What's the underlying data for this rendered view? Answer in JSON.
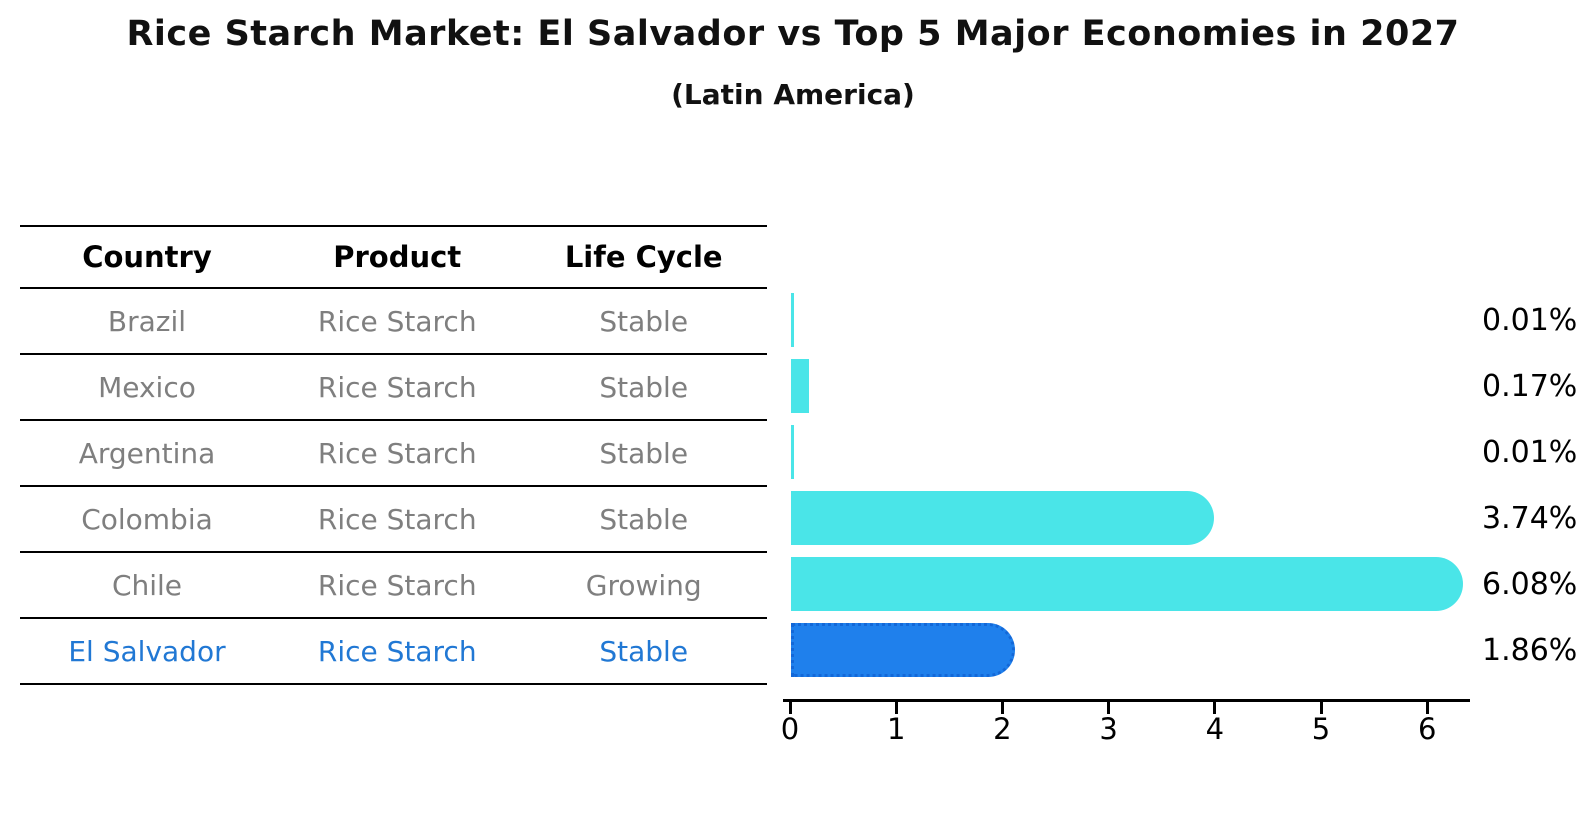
{
  "title": "Rice Starch Market: El Salvador vs Top 5 Major Economies in 2027",
  "subtitle": "(Latin America)",
  "table": {
    "headers": [
      "Country",
      "Product",
      "Life Cycle"
    ],
    "rows": [
      {
        "country": "Brazil",
        "product": "Rice Starch",
        "life_cycle": "Stable",
        "highlight": false
      },
      {
        "country": "Mexico",
        "product": "Rice Starch",
        "life_cycle": "Stable",
        "highlight": false
      },
      {
        "country": "Argentina",
        "product": "Rice Starch",
        "life_cycle": "Stable",
        "highlight": false
      },
      {
        "country": "Colombia",
        "product": "Rice Starch",
        "life_cycle": "Stable",
        "highlight": false
      },
      {
        "country": "Chile",
        "product": "Rice Starch",
        "life_cycle": "Growing",
        "highlight": false
      },
      {
        "country": "El Salvador",
        "product": "Rice Starch",
        "life_cycle": "Stable",
        "highlight": true
      }
    ]
  },
  "chart_data": {
    "type": "bar",
    "orientation": "horizontal",
    "title": "Rice Starch Market: El Salvador vs Top 5 Major Economies in 2027",
    "subtitle": "(Latin America)",
    "categories": [
      "Brazil",
      "Mexico",
      "Argentina",
      "Colombia",
      "Chile",
      "El Salvador"
    ],
    "values": [
      0.01,
      0.17,
      0.01,
      3.74,
      6.08,
      1.86
    ],
    "value_labels": [
      "0.01%",
      "0.17%",
      "0.01%",
      "3.74%",
      "6.08%",
      "1.86%"
    ],
    "x_ticks": [
      "0",
      "1",
      "2",
      "3",
      "4",
      "5",
      "6"
    ],
    "xlim": [
      0,
      6.4
    ],
    "grid": false,
    "legend": false,
    "highlight_index": 5,
    "colors": {
      "bar_default": "#4AE5E8",
      "bar_highlight": "#1F80EC",
      "bar_highlight_border": "#1368D8",
      "highlight_text": "#2178D4",
      "row_text": "#7F7F7F",
      "axis_text": "#000000"
    }
  }
}
